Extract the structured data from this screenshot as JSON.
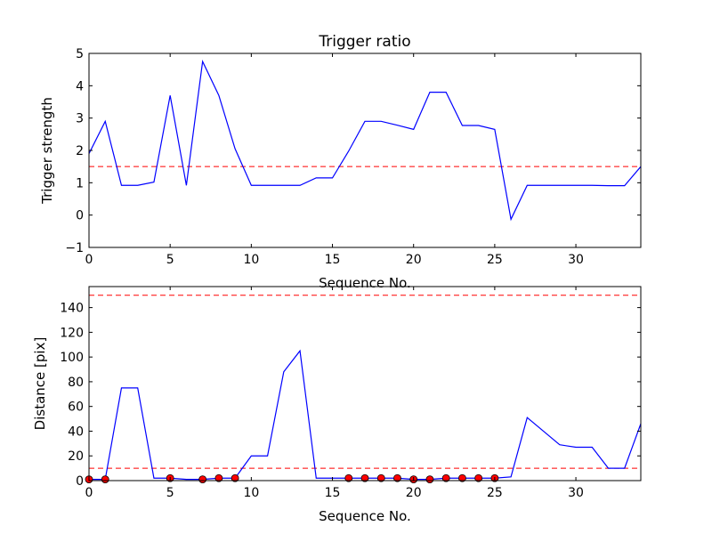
{
  "chart_data": [
    {
      "type": "line",
      "title": "Trigger ratio",
      "xlabel": "Sequence No.",
      "ylabel": "Trigger strength",
      "xlim": [
        0,
        34
      ],
      "ylim": [
        -1,
        5
      ],
      "x_ticks": [
        0,
        5,
        10,
        15,
        20,
        25,
        30
      ],
      "x_tick_labels": [
        "0",
        "5",
        "10",
        "15",
        "20",
        "25",
        "30"
      ],
      "y_ticks": [
        -1,
        0,
        1,
        2,
        3,
        4,
        5
      ],
      "y_tick_labels": [
        "−1",
        "0",
        "1",
        "2",
        "3",
        "4",
        "5"
      ],
      "series": [
        {
          "color": "#0000ff",
          "style": "solid",
          "x": [
            0,
            1,
            2,
            3,
            4,
            5,
            6,
            7,
            8,
            9,
            10,
            11,
            12,
            13,
            14,
            15,
            16,
            17,
            18,
            19,
            20,
            21,
            22,
            23,
            24,
            25,
            26,
            27,
            28,
            29,
            30,
            31,
            32,
            33,
            34
          ],
          "y": [
            1.9,
            2.9,
            0.92,
            0.92,
            1.02,
            3.7,
            0.92,
            4.75,
            3.7,
            2.05,
            0.92,
            0.92,
            0.92,
            0.92,
            1.15,
            1.15,
            1.98,
            2.9,
            2.9,
            2.78,
            2.65,
            3.8,
            3.8,
            2.77,
            2.77,
            2.65,
            -0.13,
            0.92,
            0.92,
            0.92,
            0.92,
            0.92,
            0.91,
            0.91,
            1.5
          ]
        }
      ],
      "reference_lines": [
        {
          "y": 1.5,
          "color": "#ff0000",
          "style": "dashed"
        }
      ],
      "grid": false
    },
    {
      "type": "line",
      "xlabel": "Sequence No.",
      "ylabel": "Distance [pix]",
      "xlim": [
        0,
        34
      ],
      "ylim": [
        0,
        157
      ],
      "x_ticks": [
        0,
        5,
        10,
        15,
        20,
        25,
        30
      ],
      "x_tick_labels": [
        "0",
        "5",
        "10",
        "15",
        "20",
        "25",
        "30"
      ],
      "y_ticks": [
        0,
        20,
        40,
        60,
        80,
        100,
        120,
        140
      ],
      "y_tick_labels": [
        "0",
        "20",
        "40",
        "60",
        "80",
        "100",
        "120",
        "140"
      ],
      "series": [
        {
          "color": "#0000ff",
          "style": "solid",
          "x": [
            0,
            1,
            2,
            3,
            4,
            5,
            6,
            7,
            8,
            9,
            10,
            11,
            12,
            13,
            14,
            15,
            16,
            17,
            18,
            19,
            20,
            21,
            22,
            23,
            24,
            25,
            26,
            27,
            28,
            29,
            30,
            31,
            32,
            33,
            34
          ],
          "y": [
            1,
            1,
            75,
            75,
            2,
            2,
            1,
            1,
            2,
            2,
            20,
            20,
            88,
            105,
            2,
            2,
            2,
            2,
            2,
            2,
            1,
            1,
            2,
            2,
            2,
            2,
            3,
            51,
            40,
            29,
            27,
            27,
            10,
            10,
            46
          ]
        },
        {
          "color": "#ff0000",
          "style": "markers",
          "x": [
            0,
            1,
            5,
            7,
            8,
            9,
            16,
            17,
            18,
            19,
            20,
            21,
            22,
            23,
            24,
            25
          ],
          "y": [
            1,
            1,
            2,
            1,
            2,
            2,
            2,
            2,
            2,
            2,
            1,
            1,
            2,
            2,
            2,
            2
          ]
        }
      ],
      "reference_lines": [
        {
          "y": 10,
          "color": "#ff0000",
          "style": "dashed"
        },
        {
          "y": 150,
          "color": "#ff0000",
          "style": "dashed"
        }
      ],
      "grid": false
    }
  ]
}
